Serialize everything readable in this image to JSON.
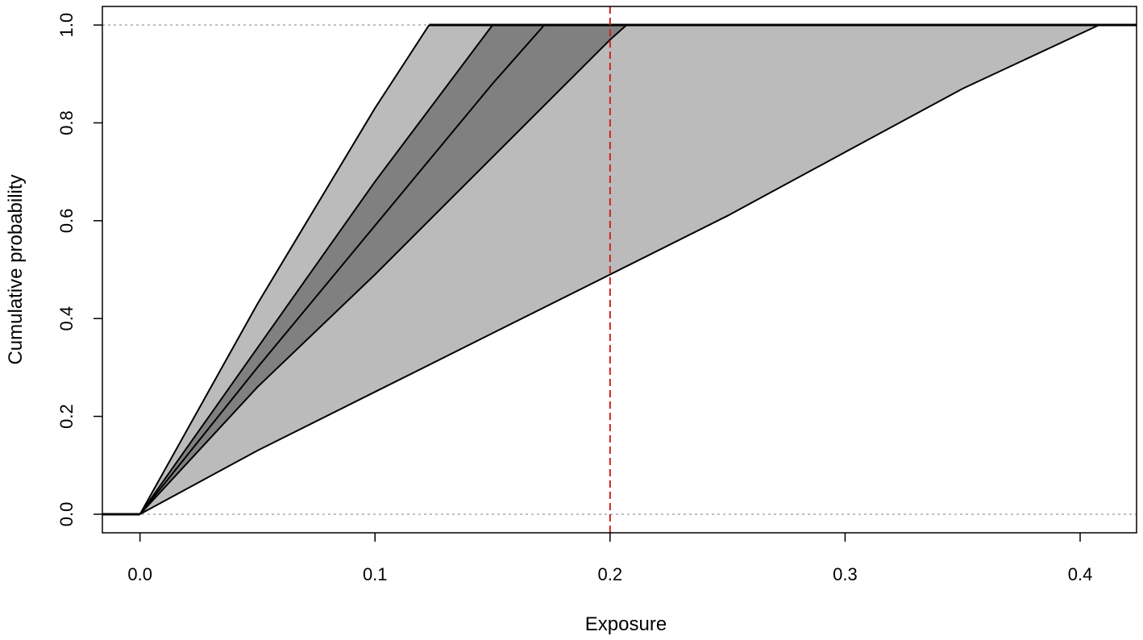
{
  "chart_data": {
    "type": "area",
    "title": "",
    "xlabel": "Exposure",
    "ylabel": "Cumulative probability",
    "xlim": [
      -0.016,
      0.424
    ],
    "ylim": [
      -0.038,
      1.038
    ],
    "xticks": [
      0.0,
      0.1,
      0.2,
      0.3,
      0.4
    ],
    "xtick_labels": [
      "0.0",
      "0.1",
      "0.2",
      "0.3",
      "0.4"
    ],
    "yticks": [
      0.0,
      0.2,
      0.4,
      0.6,
      0.8,
      1.0
    ],
    "ytick_labels": [
      "0.0",
      "0.2",
      "0.4",
      "0.6",
      "0.8",
      "1.0"
    ],
    "grid": false,
    "reference_lines": [
      {
        "orientation": "horizontal",
        "value": 0.0,
        "color": "#aaaaaa",
        "style": "dotted"
      },
      {
        "orientation": "horizontal",
        "value": 1.0,
        "color": "#aaaaaa",
        "style": "dotted"
      },
      {
        "orientation": "vertical",
        "value": 0.2,
        "color": "#cc2222",
        "style": "dashed"
      }
    ],
    "outer_band": {
      "color": "#bbbbbb",
      "lower": {
        "x": [
          0.0,
          0.05,
          0.1,
          0.15,
          0.2,
          0.25,
          0.3,
          0.35,
          0.408
        ],
        "y": [
          0.0,
          0.13,
          0.25,
          0.37,
          0.49,
          0.61,
          0.74,
          0.87,
          1.0
        ]
      },
      "upper": {
        "x": [
          0.0,
          0.05,
          0.1,
          0.123
        ],
        "y": [
          0.0,
          0.43,
          0.83,
          1.0
        ]
      }
    },
    "inner_band": {
      "color": "#808080",
      "lower": {
        "x": [
          0.0,
          0.05,
          0.1,
          0.15,
          0.2,
          0.207
        ],
        "y": [
          0.0,
          0.26,
          0.49,
          0.73,
          0.97,
          1.0
        ]
      },
      "upper": {
        "x": [
          0.0,
          0.05,
          0.1,
          0.15
        ],
        "y": [
          0.0,
          0.34,
          0.68,
          1.0
        ]
      }
    },
    "central_line": {
      "x": [
        0.0,
        0.05,
        0.1,
        0.15,
        0.172
      ],
      "y": [
        0.0,
        0.3,
        0.59,
        0.88,
        1.0
      ],
      "color": "#000000"
    },
    "x_min_extent": -0.016,
    "x_max_extent": 0.424
  }
}
